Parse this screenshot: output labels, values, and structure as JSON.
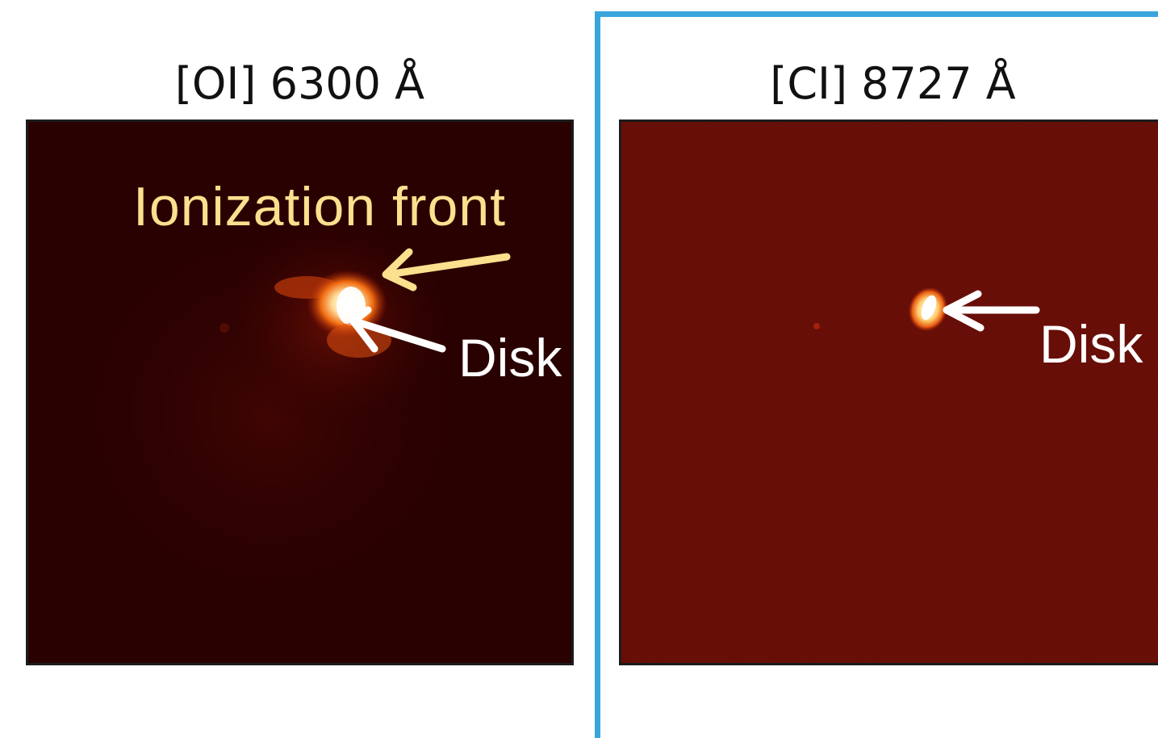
{
  "panels": [
    {
      "title": "[OI] 6300 Å",
      "annotations": {
        "front": "Ionization front",
        "disk": "Disk"
      }
    },
    {
      "title": "[CI] 8727 Å",
      "annotations": {
        "disk": "Disk"
      }
    }
  ],
  "colors": {
    "background_left": "#2a0101",
    "background_right": "#5e0904",
    "front_label": "#fbe08e",
    "disk_label": "#ffffff",
    "divider": "#3aa5dd"
  }
}
